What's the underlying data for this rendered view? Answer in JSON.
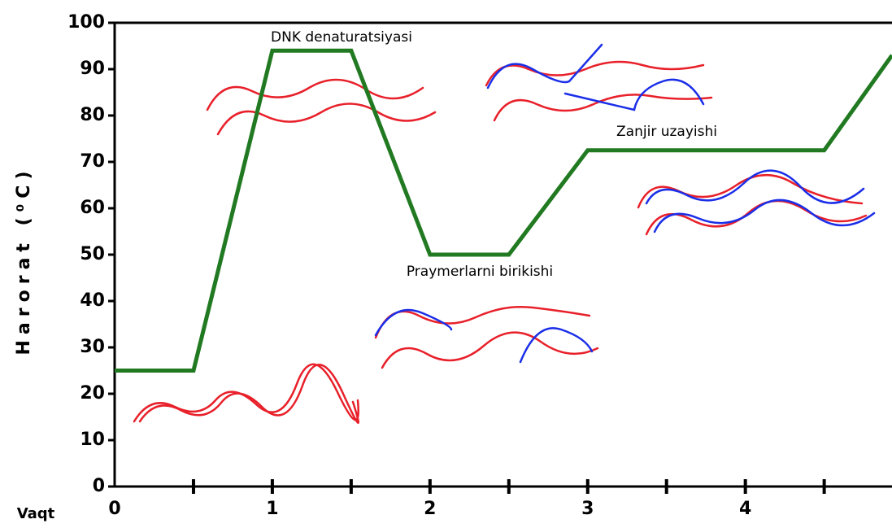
{
  "chart_data": {
    "type": "line",
    "ylabel": "Harorat   (⁰C)",
    "xlabel": "Vaqt",
    "x": [
      0,
      0.5,
      1,
      1.5,
      2,
      2.5,
      3,
      4.5,
      4.93
    ],
    "values": [
      25,
      25,
      94,
      94,
      50,
      50,
      72.5,
      72.5,
      93
    ],
    "color": "#217a21",
    "xlim": [
      0,
      4.93
    ],
    "ylim": [
      0,
      100
    ],
    "xticks": [
      0,
      1,
      2,
      3,
      4
    ],
    "xminor_ticks": [
      0.5,
      1.5,
      2.5,
      3.5,
      4.5
    ],
    "yticks": [
      0,
      10,
      20,
      30,
      40,
      50,
      60,
      70,
      80,
      90,
      100
    ],
    "annotations": [
      "DNK denaturatsiyasi",
      "Zanjir uzayishi",
      "Praymerlarni birikishi"
    ]
  }
}
